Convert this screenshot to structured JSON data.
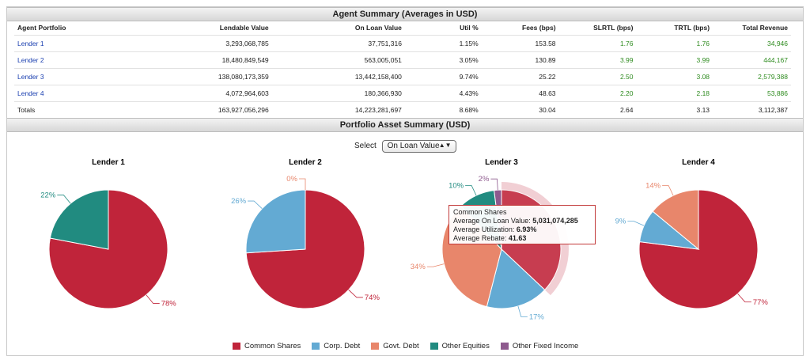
{
  "agent_summary": {
    "title": "Agent Summary (Averages in USD)",
    "columns": [
      "Agent Portfolio",
      "Lendable Value",
      "On Loan Value",
      "Util %",
      "Fees (bps)",
      "SLRTL (bps)",
      "TRTL (bps)",
      "Total Revenue"
    ],
    "rows": [
      [
        "Lender 1",
        "3,293,068,785",
        "37,751,316",
        "1.15%",
        "153.58",
        "1.76",
        "1.76",
        "34,946"
      ],
      [
        "Lender 2",
        "18,480,849,549",
        "563,005,051",
        "3.05%",
        "130.89",
        "3.99",
        "3.99",
        "444,167"
      ],
      [
        "Lender 3",
        "138,080,173,359",
        "13,442,158,400",
        "9.74%",
        "25.22",
        "2.50",
        "3.08",
        "2,579,388"
      ],
      [
        "Lender 4",
        "4,072,964,603",
        "180,366,930",
        "4.43%",
        "48.63",
        "2.20",
        "2.18",
        "53,886"
      ]
    ],
    "totals": [
      "Totals",
      "163,927,056,296",
      "14,223,281,697",
      "8.68%",
      "30.04",
      "2.64",
      "3.13",
      "3,112,387"
    ]
  },
  "portfolio": {
    "title": "Portfolio Asset Summary (USD)",
    "select_label": "Select",
    "select_value": "On Loan Value"
  },
  "tooltip": {
    "title": "Common Shares",
    "line1_label": "Average On Loan Value: ",
    "line1_value": "5,031,074,285",
    "line2_label": "Average Utilization: ",
    "line2_value": "6.93%",
    "line3_label": "Average Rebate: ",
    "line3_value": "41.63"
  },
  "colors": {
    "common_shares": "#c0243a",
    "corp_debt": "#63aad3",
    "govt_debt": "#e8866b",
    "other_equities": "#218b80",
    "other_fixed_income": "#8e5a8e"
  },
  "legend": [
    {
      "label": "Common Shares",
      "color": "#c0243a"
    },
    {
      "label": "Corp. Debt",
      "color": "#63aad3"
    },
    {
      "label": "Govt. Debt",
      "color": "#e8866b"
    },
    {
      "label": "Other Equities",
      "color": "#218b80"
    },
    {
      "label": "Other Fixed Income",
      "color": "#8e5a8e"
    }
  ],
  "chart_data": [
    {
      "type": "pie",
      "title": "Lender 1",
      "slices": [
        {
          "name": "Common Shares",
          "value": 78,
          "label": "78%"
        },
        {
          "name": "Other Equities",
          "value": 22,
          "label": "22%"
        }
      ]
    },
    {
      "type": "pie",
      "title": "Lender 2",
      "slices": [
        {
          "name": "Common Shares",
          "value": 74,
          "label": "74%"
        },
        {
          "name": "Corp. Debt",
          "value": 26,
          "label": "26%"
        },
        {
          "name": "Govt. Debt",
          "value": 0,
          "label": "0%"
        }
      ]
    },
    {
      "type": "pie",
      "title": "Lender 3",
      "slices": [
        {
          "name": "Common Shares",
          "value": 37,
          "label": ""
        },
        {
          "name": "Corp. Debt",
          "value": 17,
          "label": "17%"
        },
        {
          "name": "Govt. Debt",
          "value": 34,
          "label": "34%"
        },
        {
          "name": "Other Equities",
          "value": 10,
          "label": "10%"
        },
        {
          "name": "Other Fixed Income",
          "value": 2,
          "label": "2%"
        }
      ],
      "highlighted": "Common Shares"
    },
    {
      "type": "pie",
      "title": "Lender 4",
      "slices": [
        {
          "name": "Common Shares",
          "value": 77,
          "label": "77%"
        },
        {
          "name": "Corp. Debt",
          "value": 9,
          "label": "9%"
        },
        {
          "name": "Govt. Debt",
          "value": 14,
          "label": "14%"
        }
      ]
    }
  ]
}
